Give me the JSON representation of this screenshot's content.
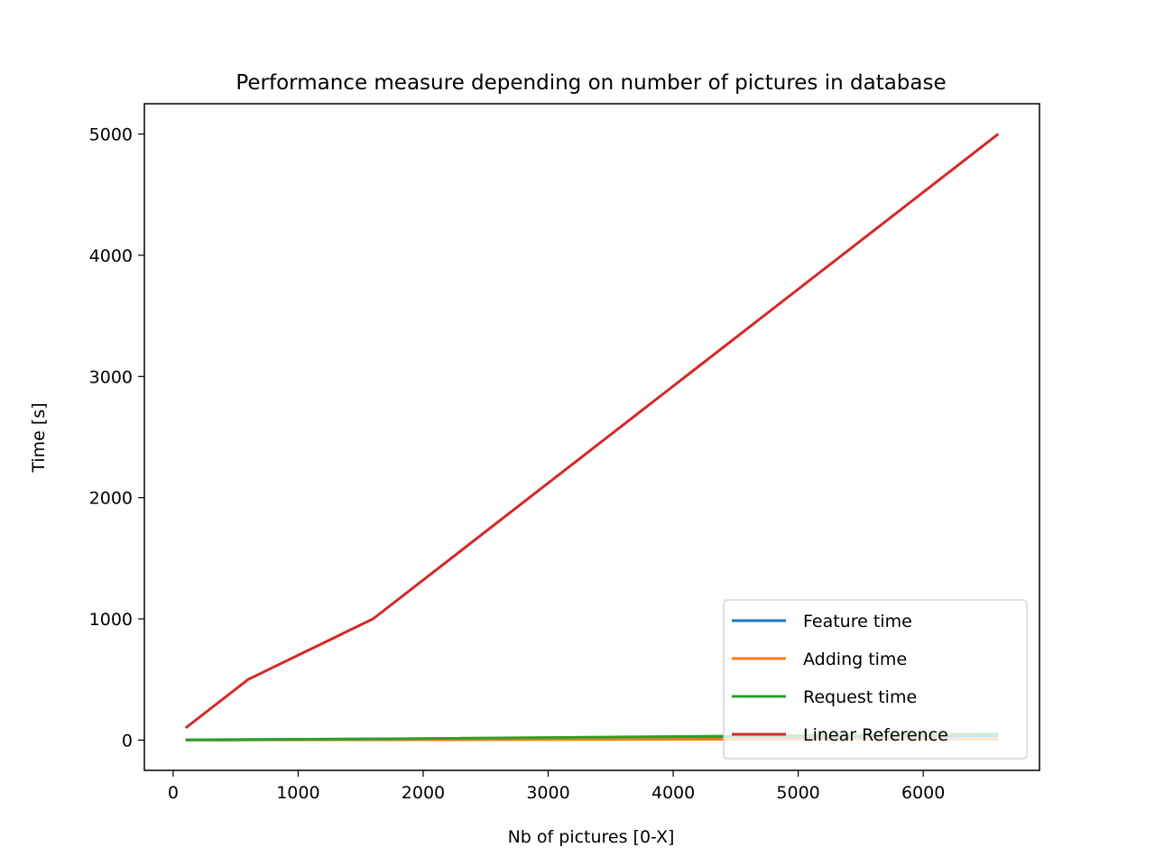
{
  "chart_data": {
    "type": "line",
    "title": "Performance measure depending on number of pictures in database",
    "xlabel": "Nb of pictures [0-X]",
    "ylabel": "Time [s]",
    "xlim": [
      -230,
      6930
    ],
    "ylim": [
      -250,
      5250
    ],
    "xticks": [
      0,
      1000,
      2000,
      3000,
      4000,
      5000,
      6000
    ],
    "yticks": [
      0,
      1000,
      2000,
      3000,
      4000,
      5000
    ],
    "grid": false,
    "legend_position": "lower right",
    "series": [
      {
        "name": "Feature time",
        "color": "#1f77b4",
        "points": [
          [
            100,
            2
          ],
          [
            600,
            5
          ],
          [
            1600,
            8
          ],
          [
            6600,
            35
          ]
        ]
      },
      {
        "name": "Adding time",
        "color": "#ff7f0e",
        "points": [
          [
            100,
            0
          ],
          [
            600,
            1
          ],
          [
            1600,
            2
          ],
          [
            6600,
            10
          ]
        ]
      },
      {
        "name": "Request time",
        "color": "#2ca02c",
        "points": [
          [
            100,
            1
          ],
          [
            600,
            3
          ],
          [
            1600,
            10
          ],
          [
            6600,
            50
          ]
        ]
      },
      {
        "name": "Linear Reference",
        "color": "#d62728",
        "points": [
          [
            100,
            100
          ],
          [
            600,
            500
          ],
          [
            1600,
            1000
          ],
          [
            6600,
            5000
          ]
        ]
      }
    ]
  }
}
